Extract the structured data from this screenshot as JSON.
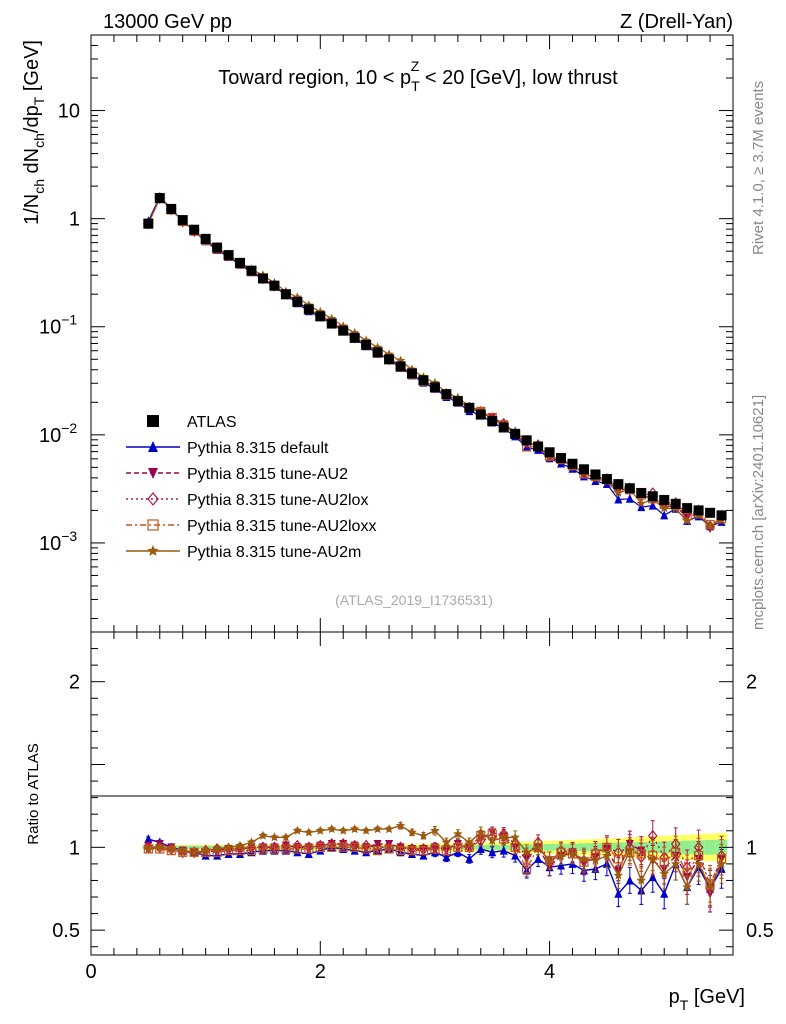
{
  "header": {
    "energy_label": "13000 GeV pp",
    "process_label": "Z (Drell-Yan)",
    "rivet_label": "Rivet 4.1.0, ≥ 3.7M events",
    "site_label": "mcplots.cern.ch [arXiv:2401.10621]",
    "analysis_label": "(ATLAS_2019_I1736531)"
  },
  "chart_data": [
    {
      "type": "scatter",
      "panel": "main",
      "title": "Toward region, 10 < p_T^Z < 20 [GeV], low thrust",
      "title_parts": {
        "pre": "Toward region, 10 < p",
        "sub": "T",
        "sup": "Z",
        "post": " < 20 [GeV], low thrust"
      },
      "ylabel": "1/N_ch dN_ch/dp_T [GeV]",
      "yscale": "log",
      "ylim": [
        0.00015,
        50
      ],
      "xlim": [
        0,
        5.6
      ],
      "y_ticks": [
        {
          "value": 10,
          "label": "10"
        },
        {
          "value": 1,
          "label": "1"
        },
        {
          "value": 0.1,
          "label": "10",
          "exp": "−1"
        },
        {
          "value": 0.01,
          "label": "10",
          "exp": "−2"
        },
        {
          "value": 0.001,
          "label": "10",
          "exp": "−3"
        }
      ],
      "x": [
        0.5,
        0.6,
        0.7,
        0.8,
        0.9,
        1.0,
        1.1,
        1.2,
        1.3,
        1.4,
        1.5,
        1.6,
        1.7,
        1.8,
        1.9,
        2.0,
        2.1,
        2.2,
        2.3,
        2.4,
        2.5,
        2.6,
        2.7,
        2.8,
        2.9,
        3.0,
        3.1,
        3.2,
        3.3,
        3.4,
        3.5,
        3.6,
        3.7,
        3.8,
        3.9,
        4.0,
        4.1,
        4.2,
        4.3,
        4.4,
        4.5,
        4.6,
        4.7,
        4.8,
        4.9,
        5.0,
        5.1,
        5.2,
        5.3,
        5.4,
        5.5
      ],
      "series": [
        {
          "name": "ATLAS",
          "color": "#000000",
          "marker": "square-filled",
          "line": "none",
          "values": [
            0.9,
            1.55,
            1.23,
            0.97,
            0.79,
            0.65,
            0.54,
            0.46,
            0.39,
            0.33,
            0.28,
            0.24,
            0.2,
            0.17,
            0.145,
            0.125,
            0.107,
            0.092,
            0.079,
            0.068,
            0.058,
            0.05,
            0.043,
            0.037,
            0.032,
            0.0275,
            0.0238,
            0.0205,
            0.0178,
            0.0154,
            0.0134,
            0.0117,
            0.0102,
            0.0089,
            0.0078,
            0.0069,
            0.0061,
            0.0054,
            0.0048,
            0.0043,
            0.0039,
            0.0035,
            0.0032,
            0.0029,
            0.0027,
            0.0025,
            0.0023,
            0.0021,
            0.002,
            0.0019,
            0.0018
          ]
        }
      ],
      "legend": [
        {
          "label": "ATLAS",
          "color": "#000000",
          "marker": "square-filled",
          "dash": "none"
        },
        {
          "label": "Pythia 8.315 default",
          "color": "#0000cc",
          "marker": "triangle-up",
          "dash": "solid"
        },
        {
          "label": "Pythia 8.315 tune-AU2",
          "color": "#9b0055",
          "marker": "triangle-down",
          "dash": "dashed"
        },
        {
          "label": "Pythia 8.315 tune-AU2lox",
          "color": "#b2183a",
          "marker": "diamond-open",
          "dash": "dotted"
        },
        {
          "label": "Pythia 8.315 tune-AU2loxx",
          "color": "#c6541c",
          "marker": "square-open",
          "dash": "dashdot"
        },
        {
          "label": "Pythia 8.315 tune-AU2m",
          "color": "#9c5a10",
          "marker": "star",
          "dash": "solid"
        }
      ]
    },
    {
      "type": "line",
      "panel": "ratio",
      "ylabel": "Ratio to ATLAS",
      "xlabel": "p_T [GeV]",
      "xlabel_parts": {
        "pre": "p",
        "sub": "T",
        "post": " [GeV]"
      },
      "ylim": [
        0.35,
        2.3
      ],
      "xlim": [
        0,
        5.6
      ],
      "y_ticks": [
        {
          "value": 0.5,
          "label": "0.5"
        },
        {
          "value": 1,
          "label": "1"
        },
        {
          "value": 2,
          "label": "2"
        }
      ],
      "x_ticks": [
        {
          "value": 0,
          "label": "0"
        },
        {
          "value": 2,
          "label": "2"
        },
        {
          "value": 4,
          "label": "4"
        }
      ],
      "x": [
        0.5,
        0.6,
        0.7,
        0.8,
        0.9,
        1.0,
        1.1,
        1.2,
        1.3,
        1.4,
        1.5,
        1.6,
        1.7,
        1.8,
        1.9,
        2.0,
        2.1,
        2.2,
        2.3,
        2.4,
        2.5,
        2.6,
        2.7,
        2.8,
        2.9,
        3.0,
        3.1,
        3.2,
        3.3,
        3.4,
        3.5,
        3.6,
        3.7,
        3.8,
        3.9,
        4.0,
        4.1,
        4.2,
        4.3,
        4.4,
        4.5,
        4.6,
        4.7,
        4.8,
        4.9,
        5.0,
        5.1,
        5.2,
        5.3,
        5.4,
        5.5
      ],
      "uncertainty_band": {
        "inner_color": "#90ee90",
        "outer_color": "#ffff66",
        "inner": [
          0.01,
          0.01,
          0.01,
          0.01,
          0.01,
          0.01,
          0.01,
          0.01,
          0.01,
          0.01,
          0.01,
          0.01,
          0.01,
          0.01,
          0.01,
          0.01,
          0.01,
          0.01,
          0.01,
          0.01,
          0.01,
          0.01,
          0.01,
          0.01,
          0.012,
          0.012,
          0.012,
          0.013,
          0.013,
          0.014,
          0.015,
          0.015,
          0.016,
          0.017,
          0.018,
          0.02,
          0.021,
          0.022,
          0.024,
          0.025,
          0.027,
          0.029,
          0.03,
          0.032,
          0.034,
          0.036,
          0.038,
          0.04,
          0.042,
          0.044,
          0.046
        ],
        "outer": [
          0.015,
          0.015,
          0.015,
          0.015,
          0.015,
          0.015,
          0.015,
          0.015,
          0.015,
          0.015,
          0.015,
          0.016,
          0.016,
          0.016,
          0.017,
          0.017,
          0.018,
          0.018,
          0.019,
          0.019,
          0.02,
          0.02,
          0.021,
          0.022,
          0.023,
          0.024,
          0.025,
          0.026,
          0.027,
          0.028,
          0.03,
          0.031,
          0.033,
          0.035,
          0.037,
          0.04,
          0.042,
          0.045,
          0.048,
          0.05,
          0.053,
          0.056,
          0.06,
          0.063,
          0.066,
          0.07,
          0.073,
          0.076,
          0.08,
          0.083,
          0.087
        ]
      },
      "series": [
        {
          "name": "Pythia 8.315 default",
          "color": "#0000cc",
          "marker": "triangle-up",
          "dash": "solid",
          "values": [
            1.05,
            1.03,
            1.0,
            0.98,
            0.97,
            0.95,
            0.95,
            0.96,
            0.96,
            0.97,
            0.98,
            0.98,
            0.98,
            0.97,
            0.96,
            0.98,
            1.0,
            0.99,
            0.98,
            0.97,
            0.98,
            0.99,
            0.97,
            0.96,
            0.95,
            0.97,
            0.94,
            0.97,
            0.93,
            0.99,
            0.97,
            0.98,
            0.95,
            0.86,
            0.93,
            0.88,
            0.89,
            0.9,
            0.86,
            0.87,
            0.9,
            0.72,
            0.8,
            0.74,
            0.82,
            0.72,
            0.9,
            0.76,
            0.88,
            0.75,
            0.87
          ],
          "errors": [
            0.01,
            0.01,
            0.01,
            0.01,
            0.01,
            0.01,
            0.01,
            0.01,
            0.01,
            0.01,
            0.01,
            0.01,
            0.01,
            0.01,
            0.01,
            0.01,
            0.01,
            0.01,
            0.01,
            0.01,
            0.01,
            0.01,
            0.015,
            0.015,
            0.015,
            0.02,
            0.02,
            0.02,
            0.02,
            0.025,
            0.025,
            0.03,
            0.03,
            0.035,
            0.035,
            0.04,
            0.04,
            0.045,
            0.05,
            0.05,
            0.055,
            0.06,
            0.06,
            0.065,
            0.07,
            0.07,
            0.075,
            0.08,
            0.08,
            0.085,
            0.09
          ]
        },
        {
          "name": "Pythia 8.315 tune-AU2",
          "color": "#9b0055",
          "marker": "triangle-down",
          "dash": "dashed",
          "values": [
            1.01,
            1.02,
            1.0,
            0.98,
            0.97,
            0.97,
            0.98,
            0.99,
            0.99,
            1.0,
            1.0,
            1.0,
            1.01,
            1.0,
            1.0,
            1.01,
            1.02,
            1.02,
            1.01,
            1.0,
            1.02,
            1.02,
            1.0,
            0.99,
            0.99,
            1.0,
            0.99,
            1.02,
            1.0,
            1.05,
            1.09,
            1.07,
            1.0,
            0.93,
            1.0,
            0.88,
            0.95,
            0.97,
            0.9,
            0.94,
            0.99,
            0.86,
            1.02,
            0.98,
            0.92,
            0.87,
            0.95,
            0.82,
            0.93,
            0.72,
            0.93
          ],
          "errors": [
            0.01,
            0.01,
            0.01,
            0.01,
            0.01,
            0.01,
            0.01,
            0.01,
            0.01,
            0.01,
            0.01,
            0.01,
            0.01,
            0.01,
            0.01,
            0.01,
            0.01,
            0.01,
            0.01,
            0.01,
            0.01,
            0.01,
            0.015,
            0.015,
            0.015,
            0.02,
            0.02,
            0.02,
            0.02,
            0.025,
            0.025,
            0.03,
            0.03,
            0.035,
            0.035,
            0.04,
            0.04,
            0.045,
            0.05,
            0.05,
            0.055,
            0.06,
            0.06,
            0.065,
            0.07,
            0.07,
            0.075,
            0.08,
            0.08,
            0.085,
            0.09
          ]
        },
        {
          "name": "Pythia 8.315 tune-AU2lox",
          "color": "#b2183a",
          "marker": "diamond-open",
          "dash": "dotted",
          "values": [
            1.0,
            1.0,
            0.99,
            0.97,
            0.97,
            0.98,
            0.99,
            0.99,
            0.99,
            1.0,
            1.0,
            1.0,
            1.01,
            1.01,
            1.0,
            1.01,
            1.02,
            1.02,
            1.01,
            1.01,
            1.0,
            1.0,
            1.0,
            0.99,
            0.99,
            1.0,
            1.0,
            1.01,
            1.0,
            1.04,
            1.06,
            1.08,
            1.02,
            0.95,
            1.03,
            0.92,
            0.98,
            0.97,
            0.92,
            0.97,
            1.0,
            0.97,
            1.0,
            0.94,
            1.07,
            0.94,
            1.02,
            0.88,
            1.0,
            0.75,
            0.95
          ],
          "errors": [
            0.01,
            0.01,
            0.01,
            0.01,
            0.01,
            0.01,
            0.01,
            0.01,
            0.01,
            0.01,
            0.01,
            0.01,
            0.01,
            0.01,
            0.01,
            0.01,
            0.01,
            0.01,
            0.01,
            0.01,
            0.01,
            0.01,
            0.015,
            0.015,
            0.015,
            0.02,
            0.02,
            0.02,
            0.02,
            0.025,
            0.025,
            0.03,
            0.03,
            0.035,
            0.035,
            0.04,
            0.04,
            0.045,
            0.05,
            0.05,
            0.055,
            0.06,
            0.06,
            0.065,
            0.07,
            0.07,
            0.075,
            0.08,
            0.08,
            0.085,
            0.09
          ]
        },
        {
          "name": "Pythia 8.315 tune-AU2loxx",
          "color": "#c6541c",
          "marker": "square-open",
          "dash": "dashdot",
          "values": [
            0.99,
            0.99,
            0.98,
            0.97,
            0.97,
            0.97,
            0.97,
            0.98,
            0.98,
            0.98,
            0.99,
            0.99,
            0.99,
            0.99,
            0.99,
            1.0,
            1.0,
            1.0,
            1.0,
            0.99,
            0.98,
            0.99,
            0.98,
            0.98,
            0.98,
            0.99,
            0.98,
            1.0,
            1.0,
            1.07,
            1.08,
            1.05,
            1.0,
            0.87,
            1.0,
            0.92,
            0.97,
            0.96,
            0.91,
            0.96,
            1.0,
            0.93,
            0.97,
            0.96,
            0.95,
            0.91,
            0.97,
            0.85,
            0.95,
            0.78,
            0.93
          ],
          "errors": [
            0.01,
            0.01,
            0.01,
            0.01,
            0.01,
            0.01,
            0.01,
            0.01,
            0.01,
            0.01,
            0.01,
            0.01,
            0.01,
            0.01,
            0.01,
            0.01,
            0.01,
            0.01,
            0.01,
            0.01,
            0.01,
            0.01,
            0.015,
            0.015,
            0.015,
            0.02,
            0.02,
            0.02,
            0.02,
            0.025,
            0.025,
            0.03,
            0.03,
            0.035,
            0.035,
            0.04,
            0.04,
            0.045,
            0.05,
            0.05,
            0.055,
            0.06,
            0.06,
            0.065,
            0.07,
            0.07,
            0.075,
            0.08,
            0.08,
            0.085,
            0.09
          ]
        },
        {
          "name": "Pythia 8.315 tune-AU2m",
          "color": "#9c5a10",
          "marker": "star",
          "dash": "solid",
          "values": [
            0.99,
            1.0,
            0.99,
            0.98,
            0.97,
            0.98,
            0.99,
            1.0,
            1.01,
            1.03,
            1.07,
            1.06,
            1.06,
            1.1,
            1.09,
            1.1,
            1.11,
            1.1,
            1.11,
            1.1,
            1.11,
            1.11,
            1.13,
            1.09,
            1.07,
            1.1,
            1.03,
            1.08,
            1.03,
            1.09,
            1.04,
            1.06,
            1.06,
            0.97,
            1.0,
            0.92,
            0.95,
            0.96,
            0.93,
            0.92,
            0.95,
            0.83,
            0.98,
            0.8,
            0.93,
            0.84,
            0.9,
            0.76,
            0.9,
            0.76,
            0.9
          ],
          "errors": [
            0.01,
            0.01,
            0.01,
            0.01,
            0.01,
            0.01,
            0.01,
            0.01,
            0.01,
            0.01,
            0.01,
            0.01,
            0.01,
            0.01,
            0.01,
            0.01,
            0.01,
            0.01,
            0.01,
            0.01,
            0.01,
            0.01,
            0.015,
            0.015,
            0.015,
            0.02,
            0.02,
            0.02,
            0.02,
            0.025,
            0.025,
            0.03,
            0.03,
            0.035,
            0.035,
            0.04,
            0.04,
            0.045,
            0.05,
            0.05,
            0.055,
            0.06,
            0.06,
            0.065,
            0.07,
            0.07,
            0.075,
            0.08,
            0.08,
            0.085,
            0.09
          ]
        }
      ]
    }
  ]
}
